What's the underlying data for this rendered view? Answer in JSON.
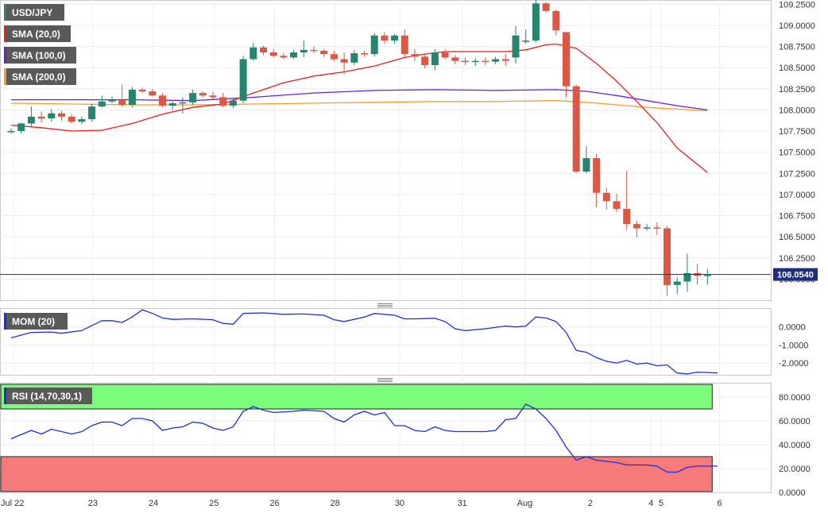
{
  "chart_data": {
    "type": "candlestick",
    "symbol": "USD/JPY",
    "current_price_label": "106.0540",
    "legend": [
      {
        "label": "USD/JPY",
        "color": "#26846f"
      },
      {
        "label": "SMA (20,0)",
        "color": "#e81e1e"
      },
      {
        "label": "SMA (100,0)",
        "color": "#6a1fd6"
      },
      {
        "label": "SMA (200,0)",
        "color": "#f59d28"
      }
    ],
    "price_axis": {
      "range": [
        105.75,
        109.3
      ],
      "ticks": [
        "109.2500",
        "109.0000",
        "108.7500",
        "108.5000",
        "108.2500",
        "108.0000",
        "107.7500",
        "107.5000",
        "107.2500",
        "107.0000",
        "106.7500",
        "106.5000",
        "106.2500",
        "106.0000"
      ],
      "tick_values": [
        109.25,
        109.0,
        108.75,
        108.5,
        108.25,
        108.0,
        107.75,
        107.5,
        107.25,
        107.0,
        106.75,
        106.5,
        106.25,
        106.0
      ]
    },
    "time_axis": {
      "ticks": [
        "Jul 22",
        "23",
        "24",
        "25",
        "26",
        "28",
        "30",
        "31",
        "Aug",
        "2",
        "4",
        "5",
        "6"
      ],
      "tick_index": [
        0.3,
        8.1,
        14.1,
        20.1,
        26.1,
        32.1,
        38.5,
        44.7,
        50.9,
        57.4,
        63.4,
        64.4,
        70.2
      ]
    },
    "candles": [
      {
        "o": 107.75,
        "h": 107.78,
        "l": 107.72,
        "c": 107.75
      },
      {
        "o": 107.75,
        "h": 107.85,
        "l": 107.72,
        "c": 107.84
      },
      {
        "o": 107.84,
        "h": 108.04,
        "l": 107.8,
        "c": 107.92
      },
      {
        "o": 107.92,
        "h": 107.98,
        "l": 107.85,
        "c": 107.9
      },
      {
        "o": 107.9,
        "h": 108.01,
        "l": 107.86,
        "c": 107.96
      },
      {
        "o": 107.96,
        "h": 107.99,
        "l": 107.87,
        "c": 107.92
      },
      {
        "o": 107.92,
        "h": 107.95,
        "l": 107.84,
        "c": 107.86
      },
      {
        "o": 107.86,
        "h": 107.92,
        "l": 107.83,
        "c": 107.89
      },
      {
        "o": 107.89,
        "h": 108.07,
        "l": 107.86,
        "c": 108.04
      },
      {
        "o": 108.04,
        "h": 108.17,
        "l": 108.03,
        "c": 108.1
      },
      {
        "o": 108.1,
        "h": 108.16,
        "l": 108.08,
        "c": 108.12
      },
      {
        "o": 108.12,
        "h": 108.3,
        "l": 108.04,
        "c": 108.06
      },
      {
        "o": 108.06,
        "h": 108.27,
        "l": 108.03,
        "c": 108.24
      },
      {
        "o": 108.24,
        "h": 108.27,
        "l": 108.2,
        "c": 108.22
      },
      {
        "o": 108.22,
        "h": 108.25,
        "l": 108.16,
        "c": 108.17
      },
      {
        "o": 108.17,
        "h": 108.2,
        "l": 108.03,
        "c": 108.05
      },
      {
        "o": 108.05,
        "h": 108.1,
        "l": 108.0,
        "c": 108.08
      },
      {
        "o": 108.08,
        "h": 108.15,
        "l": 107.96,
        "c": 108.09
      },
      {
        "o": 108.09,
        "h": 108.24,
        "l": 108.06,
        "c": 108.2
      },
      {
        "o": 108.2,
        "h": 108.22,
        "l": 108.15,
        "c": 108.17
      },
      {
        "o": 108.17,
        "h": 108.21,
        "l": 108.13,
        "c": 108.15
      },
      {
        "o": 108.15,
        "h": 108.2,
        "l": 108.03,
        "c": 108.05
      },
      {
        "o": 108.05,
        "h": 108.13,
        "l": 108.02,
        "c": 108.11
      },
      {
        "o": 108.11,
        "h": 108.64,
        "l": 108.08,
        "c": 108.6
      },
      {
        "o": 108.6,
        "h": 108.79,
        "l": 108.58,
        "c": 108.74
      },
      {
        "o": 108.74,
        "h": 108.76,
        "l": 108.65,
        "c": 108.68
      },
      {
        "o": 108.68,
        "h": 108.72,
        "l": 108.62,
        "c": 108.64
      },
      {
        "o": 108.64,
        "h": 108.67,
        "l": 108.6,
        "c": 108.62
      },
      {
        "o": 108.62,
        "h": 108.71,
        "l": 108.6,
        "c": 108.68
      },
      {
        "o": 108.68,
        "h": 108.82,
        "l": 108.62,
        "c": 108.71
      },
      {
        "o": 108.71,
        "h": 108.75,
        "l": 108.67,
        "c": 108.7
      },
      {
        "o": 108.7,
        "h": 108.72,
        "l": 108.62,
        "c": 108.66
      },
      {
        "o": 108.66,
        "h": 108.7,
        "l": 108.58,
        "c": 108.6
      },
      {
        "o": 108.6,
        "h": 108.68,
        "l": 108.42,
        "c": 108.56
      },
      {
        "o": 108.56,
        "h": 108.71,
        "l": 108.53,
        "c": 108.67
      },
      {
        "o": 108.67,
        "h": 108.7,
        "l": 108.63,
        "c": 108.66
      },
      {
        "o": 108.66,
        "h": 108.91,
        "l": 108.63,
        "c": 108.88
      },
      {
        "o": 108.88,
        "h": 108.92,
        "l": 108.78,
        "c": 108.82
      },
      {
        "o": 108.82,
        "h": 108.9,
        "l": 108.78,
        "c": 108.88
      },
      {
        "o": 108.88,
        "h": 108.95,
        "l": 108.62,
        "c": 108.66
      },
      {
        "o": 108.66,
        "h": 108.72,
        "l": 108.58,
        "c": 108.63
      },
      {
        "o": 108.63,
        "h": 108.65,
        "l": 108.49,
        "c": 108.53
      },
      {
        "o": 108.53,
        "h": 108.72,
        "l": 108.47,
        "c": 108.68
      },
      {
        "o": 108.68,
        "h": 108.72,
        "l": 108.6,
        "c": 108.62
      },
      {
        "o": 108.62,
        "h": 108.65,
        "l": 108.54,
        "c": 108.58
      },
      {
        "o": 108.58,
        "h": 108.62,
        "l": 108.53,
        "c": 108.57
      },
      {
        "o": 108.57,
        "h": 108.61,
        "l": 108.52,
        "c": 108.58
      },
      {
        "o": 108.58,
        "h": 108.62,
        "l": 108.53,
        "c": 108.57
      },
      {
        "o": 108.57,
        "h": 108.63,
        "l": 108.54,
        "c": 108.6
      },
      {
        "o": 108.6,
        "h": 108.66,
        "l": 108.52,
        "c": 108.58
      },
      {
        "o": 108.62,
        "h": 108.99,
        "l": 108.55,
        "c": 108.88
      },
      {
        "o": 108.81,
        "h": 108.95,
        "l": 108.78,
        "c": 108.82
      },
      {
        "o": 108.82,
        "h": 109.33,
        "l": 108.8,
        "c": 109.26
      },
      {
        "o": 109.26,
        "h": 109.28,
        "l": 109.15,
        "c": 109.17
      },
      {
        "o": 109.17,
        "h": 109.19,
        "l": 108.88,
        "c": 108.94
      },
      {
        "o": 108.92,
        "h": 108.92,
        "l": 108.15,
        "c": 108.28
      },
      {
        "o": 108.28,
        "h": 108.3,
        "l": 107.25,
        "c": 107.27
      },
      {
        "o": 107.27,
        "h": 107.57,
        "l": 107.25,
        "c": 107.43
      },
      {
        "o": 107.43,
        "h": 107.48,
        "l": 106.85,
        "c": 107.02
      },
      {
        "o": 107.02,
        "h": 107.08,
        "l": 106.82,
        "c": 106.92
      },
      {
        "o": 106.92,
        "h": 107.01,
        "l": 106.79,
        "c": 106.83
      },
      {
        "o": 106.83,
        "h": 107.28,
        "l": 106.58,
        "c": 106.65
      },
      {
        "o": 106.65,
        "h": 106.69,
        "l": 106.49,
        "c": 106.6
      },
      {
        "o": 106.6,
        "h": 106.65,
        "l": 106.57,
        "c": 106.61
      },
      {
        "o": 106.61,
        "h": 106.67,
        "l": 106.52,
        "c": 106.6
      },
      {
        "o": 106.6,
        "h": 106.63,
        "l": 105.8,
        "c": 105.93
      },
      {
        "o": 105.93,
        "h": 106.02,
        "l": 105.82,
        "c": 105.97
      },
      {
        "o": 105.97,
        "h": 106.3,
        "l": 105.85,
        "c": 106.07
      },
      {
        "o": 106.07,
        "h": 106.18,
        "l": 105.93,
        "c": 106.04
      },
      {
        "o": 106.04,
        "h": 106.12,
        "l": 105.93,
        "c": 106.05
      }
    ],
    "sma20": [
      {
        "i": 0,
        "v": 107.82
      },
      {
        "i": 3,
        "v": 107.79
      },
      {
        "i": 6,
        "v": 107.75
      },
      {
        "i": 9,
        "v": 107.76
      },
      {
        "i": 12,
        "v": 107.84
      },
      {
        "i": 15,
        "v": 107.95
      },
      {
        "i": 18,
        "v": 108.03
      },
      {
        "i": 21,
        "v": 108.07
      },
      {
        "i": 24,
        "v": 108.2
      },
      {
        "i": 27,
        "v": 108.32
      },
      {
        "i": 30,
        "v": 108.4
      },
      {
        "i": 33,
        "v": 108.45
      },
      {
        "i": 36,
        "v": 108.52
      },
      {
        "i": 39,
        "v": 108.62
      },
      {
        "i": 41,
        "v": 108.66
      },
      {
        "i": 43,
        "v": 108.69
      },
      {
        "i": 46,
        "v": 108.69
      },
      {
        "i": 49,
        "v": 108.69
      },
      {
        "i": 51,
        "v": 108.71
      },
      {
        "i": 53,
        "v": 108.77
      },
      {
        "i": 54,
        "v": 108.78
      },
      {
        "i": 56,
        "v": 108.73
      },
      {
        "i": 58,
        "v": 108.55
      },
      {
        "i": 60,
        "v": 108.34
      },
      {
        "i": 62,
        "v": 108.1
      },
      {
        "i": 64,
        "v": 107.85
      },
      {
        "i": 66,
        "v": 107.55
      },
      {
        "i": 69,
        "v": 107.26
      }
    ],
    "sma100": [
      {
        "i": 0,
        "v": 108.12
      },
      {
        "i": 6,
        "v": 108.12
      },
      {
        "i": 12,
        "v": 108.12
      },
      {
        "i": 18,
        "v": 108.11
      },
      {
        "i": 24,
        "v": 108.15
      },
      {
        "i": 30,
        "v": 108.2
      },
      {
        "i": 36,
        "v": 108.23
      },
      {
        "i": 42,
        "v": 108.24
      },
      {
        "i": 48,
        "v": 108.23
      },
      {
        "i": 54,
        "v": 108.24
      },
      {
        "i": 57,
        "v": 108.22
      },
      {
        "i": 60,
        "v": 108.17
      },
      {
        "i": 63,
        "v": 108.11
      },
      {
        "i": 66,
        "v": 108.05
      },
      {
        "i": 69,
        "v": 108.0
      }
    ],
    "sma200": [
      {
        "i": 0,
        "v": 108.08
      },
      {
        "i": 6,
        "v": 108.07
      },
      {
        "i": 12,
        "v": 108.06
      },
      {
        "i": 18,
        "v": 108.06
      },
      {
        "i": 24,
        "v": 108.07
      },
      {
        "i": 30,
        "v": 108.08
      },
      {
        "i": 36,
        "v": 108.09
      },
      {
        "i": 42,
        "v": 108.1
      },
      {
        "i": 48,
        "v": 108.1
      },
      {
        "i": 54,
        "v": 108.11
      },
      {
        "i": 57,
        "v": 108.09
      },
      {
        "i": 60,
        "v": 108.06
      },
      {
        "i": 63,
        "v": 108.03
      },
      {
        "i": 66,
        "v": 108.01
      },
      {
        "i": 69,
        "v": 107.99
      }
    ],
    "momentum": {
      "label": "MOM (20)",
      "range": [
        -2.65,
        1.0
      ],
      "ticks": [
        "0.0000",
        "-1.0000",
        "-2.0000"
      ],
      "tick_values": [
        0,
        -1,
        -2
      ],
      "values": [
        {
          "i": 0,
          "v": -0.6
        },
        {
          "i": 2,
          "v": -0.3
        },
        {
          "i": 4,
          "v": -0.28
        },
        {
          "i": 5,
          "v": -0.35
        },
        {
          "i": 7,
          "v": -0.2
        },
        {
          "i": 9,
          "v": 0.35
        },
        {
          "i": 10,
          "v": 0.35
        },
        {
          "i": 11,
          "v": 0.25
        },
        {
          "i": 12,
          "v": 0.55
        },
        {
          "i": 13,
          "v": 0.95
        },
        {
          "i": 14,
          "v": 0.75
        },
        {
          "i": 15,
          "v": 0.5
        },
        {
          "i": 16,
          "v": 0.42
        },
        {
          "i": 18,
          "v": 0.45
        },
        {
          "i": 20,
          "v": 0.4
        },
        {
          "i": 21,
          "v": 0.2
        },
        {
          "i": 22,
          "v": 0.15
        },
        {
          "i": 23,
          "v": 0.75
        },
        {
          "i": 25,
          "v": 0.78
        },
        {
          "i": 27,
          "v": 0.7
        },
        {
          "i": 29,
          "v": 0.72
        },
        {
          "i": 31,
          "v": 0.65
        },
        {
          "i": 32,
          "v": 0.4
        },
        {
          "i": 33,
          "v": 0.3
        },
        {
          "i": 35,
          "v": 0.55
        },
        {
          "i": 36,
          "v": 0.75
        },
        {
          "i": 38,
          "v": 0.65
        },
        {
          "i": 39,
          "v": 0.45
        },
        {
          "i": 40,
          "v": 0.45
        },
        {
          "i": 42,
          "v": 0.48
        },
        {
          "i": 43,
          "v": 0.3
        },
        {
          "i": 44,
          "v": -0.1
        },
        {
          "i": 45,
          "v": -0.2
        },
        {
          "i": 47,
          "v": -0.1
        },
        {
          "i": 49,
          "v": 0.05
        },
        {
          "i": 50,
          "v": 0.0
        },
        {
          "i": 51,
          "v": 0.05
        },
        {
          "i": 52,
          "v": 0.55
        },
        {
          "i": 53,
          "v": 0.5
        },
        {
          "i": 54,
          "v": 0.3
        },
        {
          "i": 55,
          "v": -0.3
        },
        {
          "i": 56,
          "v": -1.3
        },
        {
          "i": 57,
          "v": -1.4
        },
        {
          "i": 58,
          "v": -1.7
        },
        {
          "i": 59,
          "v": -1.9
        },
        {
          "i": 60,
          "v": -2.0
        },
        {
          "i": 61,
          "v": -1.85
        },
        {
          "i": 62,
          "v": -2.05
        },
        {
          "i": 63,
          "v": -2.0
        },
        {
          "i": 64,
          "v": -2.15
        },
        {
          "i": 65,
          "v": -2.1
        },
        {
          "i": 66,
          "v": -2.55
        },
        {
          "i": 67,
          "v": -2.6
        },
        {
          "i": 68,
          "v": -2.5
        },
        {
          "i": 70,
          "v": -2.55
        }
      ]
    },
    "rsi": {
      "label": "RSI (14,70,30,1)",
      "range": [
        0,
        100
      ],
      "overbought": 70,
      "oversold": 30,
      "ticks": [
        "80.0000",
        "60.0000",
        "40.0000",
        "20.0000",
        "0.0000"
      ],
      "tick_values": [
        80,
        60,
        40,
        20,
        0
      ],
      "values": [
        {
          "i": 0,
          "v": 45
        },
        {
          "i": 2,
          "v": 52
        },
        {
          "i": 3,
          "v": 49
        },
        {
          "i": 4,
          "v": 53
        },
        {
          "i": 6,
          "v": 49
        },
        {
          "i": 7,
          "v": 51
        },
        {
          "i": 8,
          "v": 56
        },
        {
          "i": 9,
          "v": 59
        },
        {
          "i": 10,
          "v": 59
        },
        {
          "i": 11,
          "v": 56
        },
        {
          "i": 12,
          "v": 62
        },
        {
          "i": 13,
          "v": 62
        },
        {
          "i": 14,
          "v": 60
        },
        {
          "i": 15,
          "v": 52
        },
        {
          "i": 16,
          "v": 54
        },
        {
          "i": 17,
          "v": 55
        },
        {
          "i": 18,
          "v": 59
        },
        {
          "i": 19,
          "v": 58
        },
        {
          "i": 20,
          "v": 54
        },
        {
          "i": 21,
          "v": 52
        },
        {
          "i": 22,
          "v": 55
        },
        {
          "i": 23,
          "v": 68
        },
        {
          "i": 24,
          "v": 72
        },
        {
          "i": 25,
          "v": 69
        },
        {
          "i": 26,
          "v": 67
        },
        {
          "i": 28,
          "v": 68
        },
        {
          "i": 29,
          "v": 69
        },
        {
          "i": 31,
          "v": 68
        },
        {
          "i": 32,
          "v": 62
        },
        {
          "i": 33,
          "v": 59
        },
        {
          "i": 34,
          "v": 65
        },
        {
          "i": 35,
          "v": 68
        },
        {
          "i": 36,
          "v": 65
        },
        {
          "i": 37,
          "v": 67
        },
        {
          "i": 38,
          "v": 56
        },
        {
          "i": 39,
          "v": 56
        },
        {
          "i": 40,
          "v": 52
        },
        {
          "i": 41,
          "v": 51
        },
        {
          "i": 42,
          "v": 55
        },
        {
          "i": 43,
          "v": 52
        },
        {
          "i": 44,
          "v": 51
        },
        {
          "i": 47,
          "v": 51
        },
        {
          "i": 48,
          "v": 52
        },
        {
          "i": 49,
          "v": 61
        },
        {
          "i": 50,
          "v": 62
        },
        {
          "i": 51,
          "v": 74
        },
        {
          "i": 52,
          "v": 70
        },
        {
          "i": 53,
          "v": 62
        },
        {
          "i": 54,
          "v": 52
        },
        {
          "i": 55,
          "v": 38
        },
        {
          "i": 56,
          "v": 27
        },
        {
          "i": 57,
          "v": 30
        },
        {
          "i": 58,
          "v": 27
        },
        {
          "i": 59,
          "v": 26
        },
        {
          "i": 60,
          "v": 25
        },
        {
          "i": 61,
          "v": 23
        },
        {
          "i": 62,
          "v": 23
        },
        {
          "i": 63,
          "v": 23
        },
        {
          "i": 64,
          "v": 22
        },
        {
          "i": 65,
          "v": 17
        },
        {
          "i": 66,
          "v": 17
        },
        {
          "i": 67,
          "v": 21
        },
        {
          "i": 68,
          "v": 22
        },
        {
          "i": 70,
          "v": 22
        }
      ]
    }
  }
}
